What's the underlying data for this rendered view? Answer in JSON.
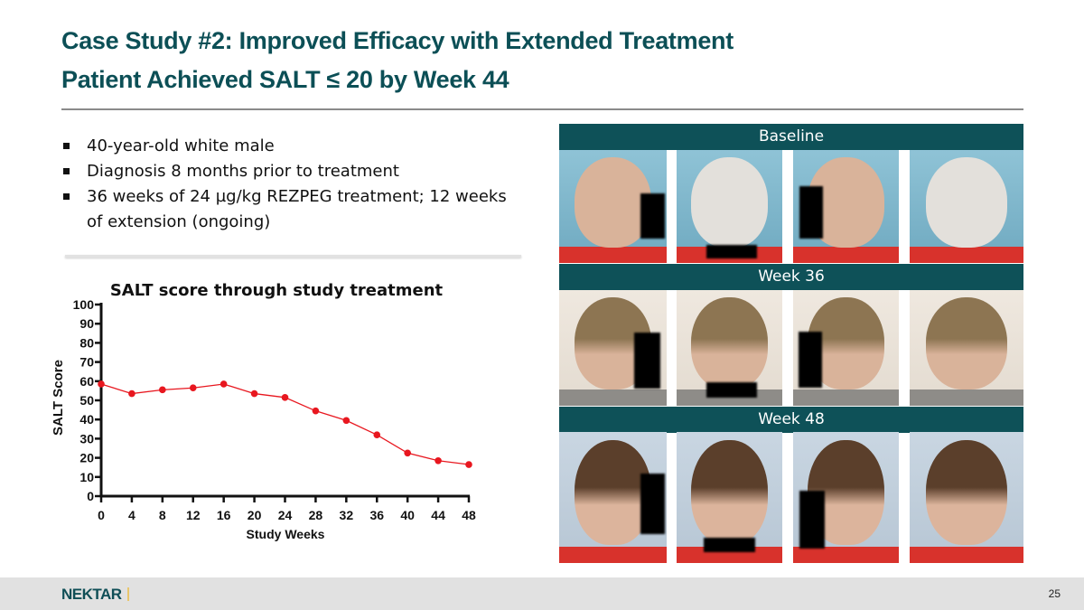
{
  "title": {
    "line1": "Case Study #2: Improved Efficacy with Extended Treatment",
    "line2": "Patient Achieved SALT ≤ 20 by Week 44"
  },
  "bullets": [
    "40-year-old white male",
    "Diagnosis 8 months prior to treatment",
    "36 weeks of 24 µg/kg REZPEG treatment; 12 weeks of extension (ongoing)"
  ],
  "photo_panels": [
    {
      "label": "Baseline",
      "photo_count": 4
    },
    {
      "label": "Week 36",
      "photo_count": 4
    },
    {
      "label": "Week 48",
      "photo_count": 4
    }
  ],
  "footer": {
    "logo": "NEKTAR",
    "page_number": "25"
  },
  "colors": {
    "brand_teal": "#0e5158",
    "series": "#e8171f",
    "accent_gold": "#e8c66c"
  },
  "chart_data": {
    "type": "line",
    "title": "SALT score through study treatment",
    "xlabel": "Study Weeks",
    "ylabel": "SALT Score",
    "x": [
      0,
      4,
      8,
      12,
      16,
      20,
      24,
      28,
      32,
      36,
      40,
      44,
      48
    ],
    "series": [
      {
        "name": "SALT Score",
        "values": [
          58.5,
          53.5,
          55.5,
          56.5,
          58.5,
          53.5,
          51.5,
          44.5,
          39.5,
          32,
          22.5,
          18.5,
          16.5
        ]
      }
    ],
    "xlim": [
      0,
      48
    ],
    "ylim": [
      0,
      100
    ],
    "xticks": [
      "0",
      "4",
      "8",
      "12",
      "16",
      "20",
      "24",
      "28",
      "32",
      "36",
      "40",
      "44",
      "48"
    ],
    "yticks": [
      "0",
      "10",
      "20",
      "30",
      "40",
      "50",
      "60",
      "70",
      "80",
      "90",
      "100"
    ],
    "grid": false,
    "legend": "none"
  }
}
